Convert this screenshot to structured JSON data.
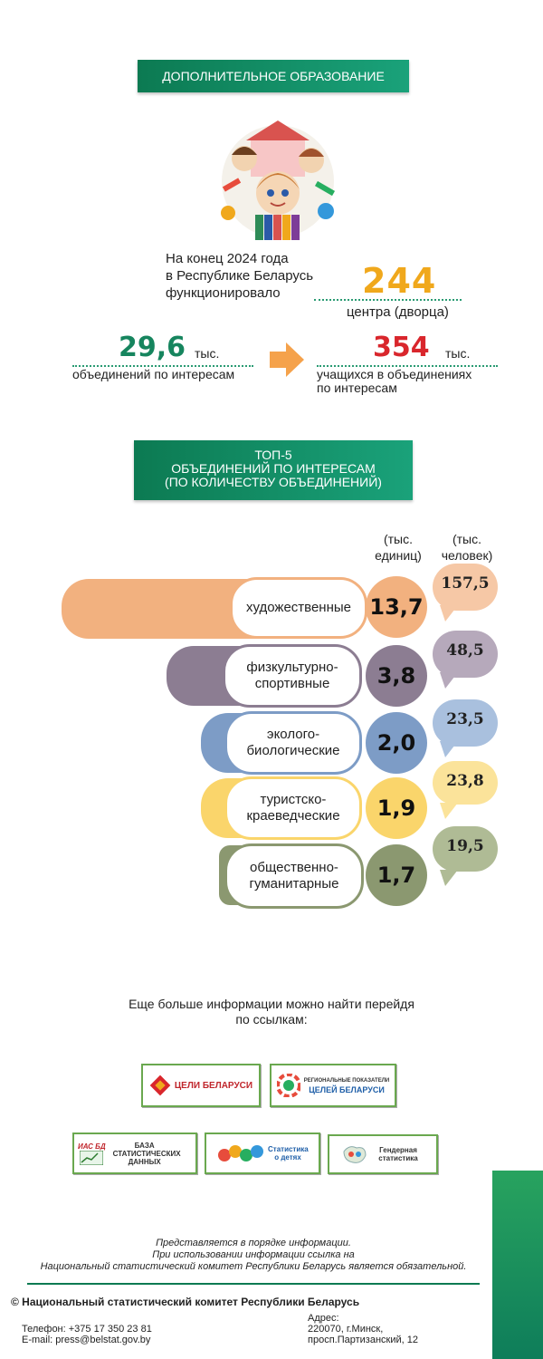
{
  "header": {
    "title": "ДОПОЛНИТЕЛЬНОЕ ОБРАЗОВАНИЕ"
  },
  "intro": {
    "line1": "На конец 2024 года",
    "line2": "в  Республике Беларусь",
    "line3": "функционировало",
    "centers_value": "244",
    "centers_label": "центра (дворца)"
  },
  "stats": {
    "groups_value": "29,6",
    "groups_unit": "тыс.",
    "groups_label": "объединений по интересам",
    "students_value": "354",
    "students_unit": "тыс.",
    "students_label1": "учащихся в объединениях",
    "students_label2": "по интересам"
  },
  "top5": {
    "title1": "ТОП-5",
    "title2": "ОБЪЕДИНЕНИЙ ПО ИНТЕРЕСАМ",
    "title3": "(ПО КОЛИЧЕСТВУ ОБЪЕДИНЕНИЙ)",
    "col1_line1": "(тыс.",
    "col1_line2": "единиц)",
    "col2_line1": "(тыс.",
    "col2_line2": "человек)"
  },
  "chart_data": {
    "type": "bar",
    "categories": [
      "художественные",
      "физкультурно-спортивные",
      "эколого-биологические",
      "туристско-краеведческие",
      "общественно-гуманитарные"
    ],
    "series": [
      {
        "name": "(тыс. единиц)",
        "values": [
          13.7,
          3.8,
          2.0,
          1.9,
          1.7
        ]
      },
      {
        "name": "(тыс. человек)",
        "values": [
          157.5,
          48.5,
          23.5,
          23.8,
          19.5
        ]
      }
    ]
  },
  "rows": [
    {
      "label1": "художественные",
      "label2": "",
      "units": "13,7",
      "people": "157,5",
      "color": "#f2b17f",
      "bubble": "#f6c8a6"
    },
    {
      "label1": "физкультурно-",
      "label2": "спортивные",
      "units": "3,8",
      "people": "48,5",
      "color": "#8c7d92",
      "bubble": "#b6a9bb"
    },
    {
      "label1": "эколого-",
      "label2": "биологические",
      "units": "2,0",
      "people": "23,5",
      "color": "#7d9cc6",
      "bubble": "#a9c0de"
    },
    {
      "label1": "туристско-",
      "label2": "краеведческие",
      "units": "1,9",
      "people": "23,8",
      "color": "#fad56b",
      "bubble": "#fbe39a"
    },
    {
      "label1": "общественно-",
      "label2": "гуманитарные",
      "units": "1,7",
      "people": "19,5",
      "color": "#8b9870",
      "bubble": "#afbb95"
    }
  ],
  "links": {
    "intro1": "Еще больше  информации можно найти перейдя",
    "intro2": "по ссылкам:",
    "logo1": "ЦЕЛИ БЕЛАРУСИ",
    "logo2_top": "РЕГИОНАЛЬНЫЕ ПОКАЗАТЕЛИ",
    "logo2_main": "ЦЕЛЕЙ БЕЛАРУСИ",
    "logo3_top": "ИАС БД",
    "logo3_main": "БАЗА СТАТИСТИЧЕСКИХ ДАННЫХ",
    "logo4": "Статистика о детях",
    "logo5": "Гендерная статистика"
  },
  "footer": {
    "note1": "Представляется в порядке информации.",
    "note2": "При использовании информации ссылка на",
    "note3": "Национальный статистический комитет Республики Беларусь является обязательной.",
    "copyright": "© Национальный статистический комитет Республики Беларусь",
    "phone": "Телефон: +375 17 350 23 81",
    "email": "E-mail: press@belstat.gov.by",
    "address_label": "Адрес:",
    "address1": "220070, г.Минск,",
    "address2": "просп.Партизанский, 12"
  },
  "colors": {
    "accent": "#0c7a52",
    "orange": "#f0a81c",
    "red": "#d9262c",
    "green": "#16855e"
  }
}
